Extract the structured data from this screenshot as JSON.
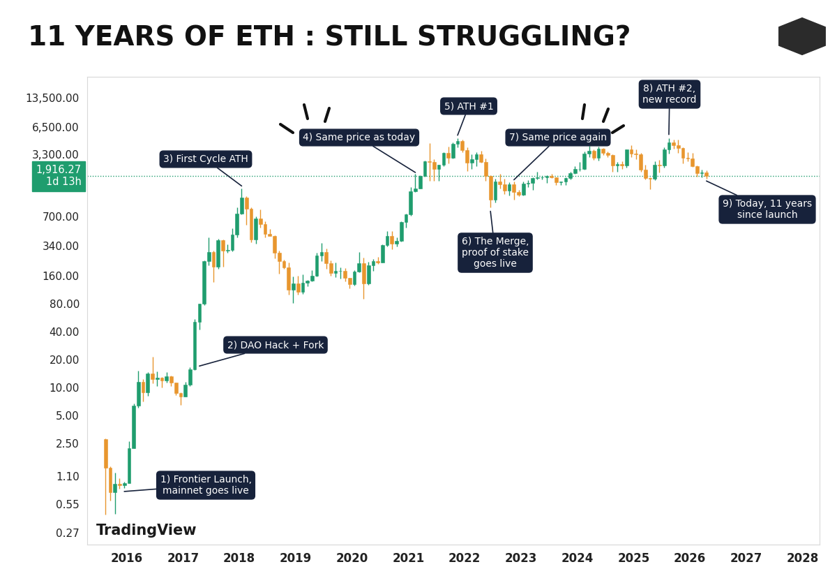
{
  "chart_data": {
    "type": "candlestick",
    "title": "11 YEARS OF ETH : STILL STRUGGLING?",
    "x": [
      "2015-08",
      "2015-09",
      "2015-10",
      "2015-11",
      "2015-12",
      "2016-01",
      "2016-02",
      "2016-03",
      "2016-04",
      "2016-05",
      "2016-06",
      "2016-07",
      "2016-08",
      "2016-09",
      "2016-10",
      "2016-11",
      "2016-12",
      "2017-01",
      "2017-02",
      "2017-03",
      "2017-04",
      "2017-05",
      "2017-06",
      "2017-07",
      "2017-08",
      "2017-09",
      "2017-10",
      "2017-11",
      "2017-12",
      "2018-01",
      "2018-02",
      "2018-03",
      "2018-04",
      "2018-05",
      "2018-06",
      "2018-07",
      "2018-08",
      "2018-09",
      "2018-10",
      "2018-11",
      "2018-12",
      "2019-01",
      "2019-02",
      "2019-03",
      "2019-04",
      "2019-05",
      "2019-06",
      "2019-07",
      "2019-08",
      "2019-09",
      "2019-10",
      "2019-11",
      "2019-12",
      "2020-01",
      "2020-02",
      "2020-03",
      "2020-04",
      "2020-05",
      "2020-06",
      "2020-07",
      "2020-08",
      "2020-09",
      "2020-10",
      "2020-11",
      "2020-12",
      "2021-01",
      "2021-02",
      "2021-03",
      "2021-04",
      "2021-05",
      "2021-06",
      "2021-07",
      "2021-08",
      "2021-09",
      "2021-10",
      "2021-11",
      "2021-12",
      "2022-01",
      "2022-02",
      "2022-03",
      "2022-04",
      "2022-05",
      "2022-06",
      "2022-07",
      "2022-08",
      "2022-09",
      "2022-10",
      "2022-11",
      "2022-12",
      "2023-01",
      "2023-02",
      "2023-03",
      "2023-04",
      "2023-05",
      "2023-06",
      "2023-07",
      "2023-08",
      "2023-09",
      "2023-10",
      "2023-11",
      "2023-12",
      "2024-01",
      "2024-02",
      "2024-03",
      "2024-04",
      "2024-05",
      "2024-06",
      "2024-07",
      "2024-08",
      "2024-09",
      "2024-10",
      "2024-11",
      "2024-12",
      "2025-01",
      "2025-02",
      "2025-03",
      "2025-04",
      "2025-05",
      "2025-06",
      "2025-07",
      "2025-08",
      "2025-09",
      "2025-10",
      "2025-11",
      "2025-12",
      "2026-01",
      "2026-02",
      "2026-03",
      "2026-04"
    ],
    "open": [
      2.77,
      1.35,
      0.73,
      0.91,
      0.87,
      0.93,
      2.2,
      6.3,
      11.4,
      8.8,
      14.0,
      12.2,
      12.7,
      11.9,
      13.2,
      11.2,
      8.6,
      8.0,
      10.7,
      15.7,
      50.6,
      79.5,
      231,
      292,
      201,
      387,
      302,
      305,
      447,
      756,
      1118,
      855,
      396,
      669,
      577,
      455,
      433,
      283,
      232,
      198,
      113,
      133,
      107,
      136,
      141,
      162,
      268,
      290,
      218,
      172,
      180,
      182,
      152,
      130,
      179,
      218,
      133,
      207,
      231,
      225,
      346,
      435,
      360,
      386,
      612,
      737,
      1315,
      1420,
      1920,
      2775,
      2710,
      2275,
      2535,
      3430,
      3000,
      4290,
      4630,
      3680,
      2690,
      2920,
      3280,
      2730,
      1940,
      1070,
      1680,
      1555,
      1330,
      1570,
      1295,
      1196,
      1585,
      1605,
      1820,
      1870,
      1875,
      1935,
      1860,
      1645,
      1670,
      1815,
      2050,
      2280,
      2285,
      3340,
      3600,
      3010,
      3760,
      3430,
      3230,
      2510,
      2600,
      2510,
      3700,
      3330,
      3300,
      2240,
      1820,
      1790,
      2530,
      2490,
      3700,
      4400,
      4150,
      3850,
      3000,
      2970,
      2450,
      2050,
      2100
    ],
    "high": [
      2.8,
      1.4,
      1.2,
      1.05,
      0.95,
      2.6,
      6.7,
      15.0,
      12.3,
      14.5,
      21.5,
      14.9,
      13.0,
      14.6,
      13.3,
      11.3,
      8.8,
      11.5,
      16.5,
      55,
      80,
      235,
      420,
      302,
      400,
      395,
      350,
      520,
      882,
      1420,
      1162,
      880,
      700,
      838,
      620,
      515,
      440,
      300,
      238,
      225,
      158,
      160,
      165,
      145,
      185,
      285,
      362,
      317,
      234,
      223,
      198,
      194,
      153,
      186,
      288,
      253,
      228,
      245,
      255,
      348,
      490,
      490,
      420,
      620,
      760,
      1470,
      2040,
      1945,
      2800,
      4380,
      2900,
      2550,
      3450,
      4030,
      4460,
      4890,
      4780,
      3900,
      3280,
      3480,
      3580,
      2960,
      1970,
      1790,
      2030,
      1790,
      1660,
      1680,
      1350,
      1680,
      1740,
      1850,
      2140,
      1930,
      1960,
      2030,
      1870,
      1680,
      1865,
      2140,
      2450,
      2720,
      3520,
      4090,
      3730,
      3975,
      3890,
      3560,
      3280,
      2720,
      2770,
      3740,
      4110,
      3740,
      3440,
      2550,
      1850,
      2790,
      2880,
      3940,
      4950,
      4770,
      4750,
      3900,
      3450,
      3400,
      2500,
      2250,
      2200
    ],
    "low": [
      0.42,
      0.6,
      0.43,
      0.8,
      0.82,
      0.93,
      2.2,
      6.0,
      7.0,
      8.1,
      11.0,
      10.4,
      10.0,
      11.3,
      10.3,
      8.2,
      6.5,
      7.9,
      10.3,
      15.4,
      42,
      78,
      210,
      138,
      190,
      200,
      285,
      293,
      420,
      740,
      575,
      370,
      360,
      530,
      420,
      430,
      250,
      168,
      190,
      100,
      82,
      100,
      102,
      124,
      140,
      158,
      231,
      190,
      160,
      156,
      151,
      140,
      117,
      127,
      175,
      90,
      128,
      180,
      215,
      222,
      335,
      310,
      335,
      375,
      535,
      715,
      1290,
      1420,
      1900,
      1700,
      1700,
      1720,
      2450,
      2650,
      2970,
      3950,
      3500,
      2160,
      2300,
      2450,
      2700,
      1700,
      880,
      1000,
      1420,
      1220,
      1190,
      1070,
      1160,
      1190,
      1460,
      1370,
      1780,
      1760,
      1630,
      1830,
      1550,
      1530,
      1525,
      1770,
      2040,
      2170,
      2260,
      3060,
      2870,
      2810,
      3240,
      3090,
      2120,
      2150,
      2310,
      2360,
      3100,
      2920,
      2120,
      1760,
      1380,
      1750,
      2110,
      2370,
      3350,
      3820,
      3440,
      2620,
      2780,
      2400,
      1900,
      1850,
      1800
    ],
    "close": [
      1.35,
      0.73,
      0.91,
      0.87,
      0.93,
      2.2,
      6.3,
      11.4,
      8.8,
      14.0,
      12.2,
      12.7,
      11.9,
      13.2,
      11.2,
      8.6,
      8.0,
      10.7,
      15.7,
      50.6,
      79.5,
      231,
      292,
      201,
      387,
      302,
      305,
      447,
      756,
      1118,
      855,
      396,
      669,
      577,
      455,
      433,
      283,
      232,
      198,
      113,
      133,
      107,
      136,
      141,
      162,
      268,
      290,
      218,
      172,
      180,
      182,
      152,
      130,
      179,
      218,
      133,
      207,
      231,
      225,
      346,
      435,
      360,
      386,
      612,
      737,
      1315,
      1420,
      1920,
      2775,
      2710,
      2275,
      2535,
      3430,
      3000,
      4290,
      4630,
      3680,
      2690,
      2920,
      3280,
      2730,
      1940,
      1070,
      1680,
      1555,
      1330,
      1570,
      1295,
      1196,
      1585,
      1605,
      1820,
      1870,
      1875,
      1935,
      1860,
      1645,
      1670,
      1815,
      2050,
      2280,
      2285,
      3340,
      3600,
      3010,
      3760,
      3430,
      3230,
      2510,
      2600,
      2510,
      3700,
      3330,
      3300,
      2240,
      1820,
      1790,
      2530,
      2490,
      3700,
      4400,
      4150,
      3850,
      3000,
      2970,
      2450,
      2050,
      2100,
      1916.27
    ],
    "color": {
      "up": "#1f9d6e",
      "down": "#e8962e"
    },
    "log": "y",
    "ylim": [
      0.2,
      22700
    ],
    "yticks": [
      {
        "value": 0.27,
        "label": "0.27"
      },
      {
        "value": 0.55,
        "label": "0.55"
      },
      {
        "value": 1.1,
        "label": "1.10"
      },
      {
        "value": 2.5,
        "label": "2.50"
      },
      {
        "value": 5,
        "label": "5.00"
      },
      {
        "value": 10,
        "label": "10.00"
      },
      {
        "value": 20,
        "label": "20.00"
      },
      {
        "value": 40,
        "label": "40.00"
      },
      {
        "value": 80,
        "label": "80.00"
      },
      {
        "value": 160,
        "label": "160.00"
      },
      {
        "value": 340,
        "label": "340.00"
      },
      {
        "value": 700,
        "label": "700.00"
      },
      {
        "value": 3300,
        "label": "3,300.00"
      },
      {
        "value": 6500,
        "label": "6,500.00"
      },
      {
        "value": 13500,
        "label": "13,500.00"
      }
    ],
    "xlim": [
      2015.3,
      2028.3
    ],
    "xticks": [
      2016,
      2017,
      2018,
      2019,
      2020,
      2021,
      2022,
      2023,
      2024,
      2025,
      2026,
      2027,
      2028
    ],
    "grid": false,
    "current_price": {
      "value": 1916.27,
      "label": "1,916.27",
      "countdown": "1d 13h"
    },
    "annotations": [
      {
        "text": "1) Frontier Launch,\nmainnet goes live",
        "x": "2015-12",
        "y": 0.75
      },
      {
        "text": "2) DAO Hack + Fork",
        "x": "2017-04",
        "y": 17
      },
      {
        "text": "3) First Cycle ATH",
        "x": "2018-01",
        "y": 1500
      },
      {
        "text": "4) Same price as today",
        "x": "2021-02",
        "y": 2100
      },
      {
        "text": "5) ATH #1",
        "x": "2021-11",
        "y": 5300
      },
      {
        "text": "6) The Merge,\nproof of stake\ngoes live",
        "x": "2022-06",
        "y": 800
      },
      {
        "text": "7) Same price again",
        "x": "2022-11",
        "y": 1750
      },
      {
        "text": "8) ATH #2,\nnew record",
        "x": "2025-08",
        "y": 5400
      },
      {
        "text": "9) Today, 11 years\nsince launch",
        "x": "2026-04",
        "y": 1700
      }
    ],
    "watermark": "TradingView"
  }
}
